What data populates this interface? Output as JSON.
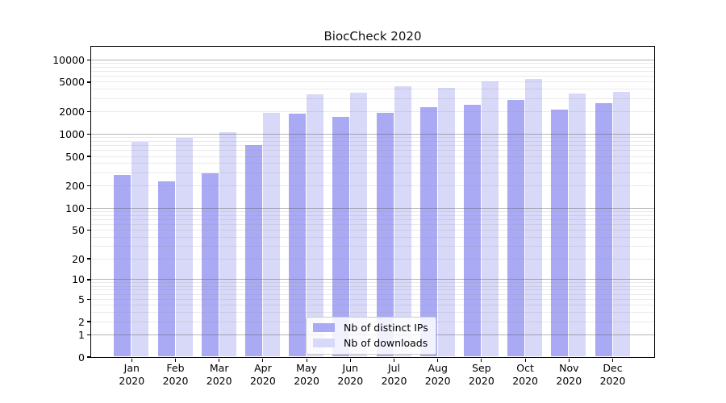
{
  "title": "BiocCheck 2020",
  "chart_data": {
    "type": "bar",
    "title": "BiocCheck 2020",
    "y_scale": "log1p",
    "ylim": [
      0,
      15000
    ],
    "grid": "horizontal major (powers of 10) + faint minor lines, drawn over bars",
    "legend_position": "lower center",
    "x_year": "2020",
    "categories": [
      "Jan",
      "Feb",
      "Mar",
      "Apr",
      "May",
      "Jun",
      "Jul",
      "Aug",
      "Sep",
      "Oct",
      "Nov",
      "Dec"
    ],
    "y_ticks": [
      10000,
      5000,
      2000,
      1000,
      500,
      200,
      100,
      50,
      20,
      10,
      5,
      2,
      1,
      0
    ],
    "series": [
      {
        "key": "distinct-ips",
        "name": "Nb of distinct IPs",
        "color": "#a9a9f4",
        "values": [
          275,
          225,
          295,
          700,
          1850,
          1670,
          1890,
          2250,
          2470,
          2825,
          2120,
          2590
        ]
      },
      {
        "key": "downloads",
        "name": "Nb of downloads",
        "color": "#d8d8f8",
        "values": [
          770,
          890,
          1055,
          1920,
          3400,
          3550,
          4350,
          4150,
          5000,
          5500,
          3450,
          3650
        ]
      }
    ]
  }
}
